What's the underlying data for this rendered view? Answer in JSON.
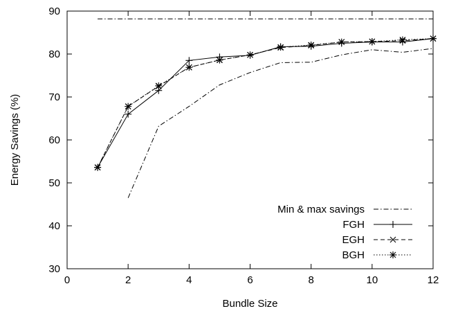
{
  "chart_data": {
    "type": "line",
    "xlabel": "Bundle Size",
    "ylabel": "Energy Savings (%)",
    "xlim": [
      0,
      12
    ],
    "ylim": [
      30,
      90
    ],
    "xticks": [
      0,
      2,
      4,
      6,
      8,
      10,
      12
    ],
    "yticks": [
      30,
      40,
      50,
      60,
      70,
      80,
      90
    ],
    "grid": false,
    "legend_position": "bottom-right",
    "series": [
      {
        "name": "Min & max savings",
        "style": "dash-dot",
        "marker": "none",
        "segments": [
          {
            "x": [
              1,
              12
            ],
            "y": [
              88.2,
              88.2
            ]
          },
          {
            "x": [
              2,
              3,
              4,
              5,
              6,
              7,
              8,
              9,
              10,
              11,
              12
            ],
            "y": [
              46.5,
              63.2,
              67.8,
              72.8,
              75.7,
              78.0,
              78.1,
              79.8,
              81.0,
              80.4,
              81.3
            ]
          }
        ]
      },
      {
        "name": "FGH",
        "style": "solid",
        "marker": "plus",
        "x": [
          1,
          2,
          3,
          4,
          5,
          6,
          7,
          8,
          9,
          10,
          11,
          12
        ],
        "y": [
          53.6,
          66.0,
          71.5,
          78.5,
          79.3,
          79.7,
          81.7,
          81.8,
          82.5,
          82.8,
          82.8,
          83.6
        ]
      },
      {
        "name": "EGH",
        "style": "dashed",
        "marker": "x",
        "x": [
          1,
          2,
          3,
          4,
          5,
          6,
          7,
          8,
          9,
          10,
          11,
          12
        ],
        "y": [
          53.6,
          67.8,
          72.5,
          76.9,
          78.6,
          79.8,
          81.5,
          82.0,
          82.8,
          82.9,
          83.1,
          83.6
        ]
      },
      {
        "name": "BGH",
        "style": "dotted",
        "marker": "star",
        "x": [
          1,
          2,
          3,
          4,
          5,
          6,
          7,
          8,
          9,
          10,
          11,
          12
        ],
        "y": [
          53.6,
          67.8,
          72.6,
          76.9,
          78.6,
          79.8,
          81.6,
          82.1,
          82.8,
          82.9,
          83.3,
          83.6
        ]
      }
    ]
  }
}
